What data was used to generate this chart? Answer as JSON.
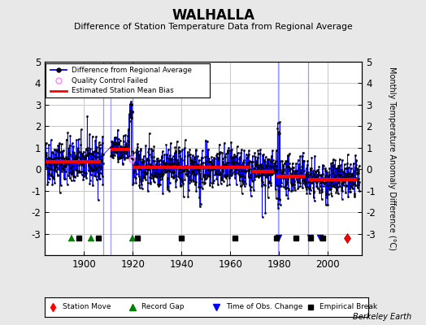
{
  "title": "WALHALLA",
  "subtitle": "Difference of Station Temperature Data from Regional Average",
  "ylabel_right": "Monthly Temperature Anomaly Difference (°C)",
  "credit": "Berkeley Earth",
  "xlim": [
    1884,
    2014
  ],
  "ylim": [
    -4,
    5
  ],
  "yticks": [
    -3,
    -2,
    -1,
    0,
    1,
    2,
    3,
    4,
    5
  ],
  "xticks": [
    1900,
    1920,
    1940,
    1960,
    1980,
    2000
  ],
  "background_color": "#e8e8e8",
  "plot_bg_color": "#ffffff",
  "grid_color": "#c8c8c8",
  "seed": 42,
  "segments": [
    {
      "start": 1884,
      "end": 1907,
      "bias": 0.35,
      "noise": 0.55,
      "trend": 0.0
    },
    {
      "start": 1911,
      "end": 1919,
      "bias": 0.9,
      "noise": 0.45,
      "trend": 0.0
    },
    {
      "start": 1920,
      "end": 1968,
      "bias": 0.15,
      "noise": 0.5,
      "trend": -0.004
    },
    {
      "start": 1969,
      "end": 1978,
      "bias": -0.05,
      "noise": 0.45,
      "trend": 0.0
    },
    {
      "start": 1979,
      "end": 1991,
      "bias": -0.3,
      "noise": 0.42,
      "trend": 0.0
    },
    {
      "start": 1992,
      "end": 2012,
      "bias": -0.5,
      "noise": 0.45,
      "trend": 0.0
    }
  ],
  "bias_segments": [
    {
      "start": 1884,
      "end": 1907,
      "value": 0.35
    },
    {
      "start": 1911,
      "end": 1919,
      "value": 0.9
    },
    {
      "start": 1920,
      "end": 1968,
      "value": 0.1
    },
    {
      "start": 1969,
      "end": 1978,
      "value": -0.1
    },
    {
      "start": 1979,
      "end": 1991,
      "value": -0.35
    },
    {
      "start": 1992,
      "end": 2012,
      "value": -0.5
    }
  ],
  "vertical_lines": [
    1908.0,
    1911.0,
    1920.0,
    1979.5,
    1992.0
  ],
  "station_moves": [
    2008
  ],
  "record_gaps": [
    1895,
    1903,
    1920
  ],
  "obs_changes": [
    1980,
    1993,
    1997
  ],
  "empirical_breaks": [
    1898,
    1906,
    1922,
    1940,
    1962,
    1979,
    1987,
    1993,
    1998
  ],
  "qc_fail_year": 1919.5,
  "qc_fail_value": 0.45,
  "line_color": "#0000ff",
  "bias_color": "#ff0000",
  "marker_color": "#000000",
  "qc_color": "#ff80ff",
  "bottom_y": -3.2
}
